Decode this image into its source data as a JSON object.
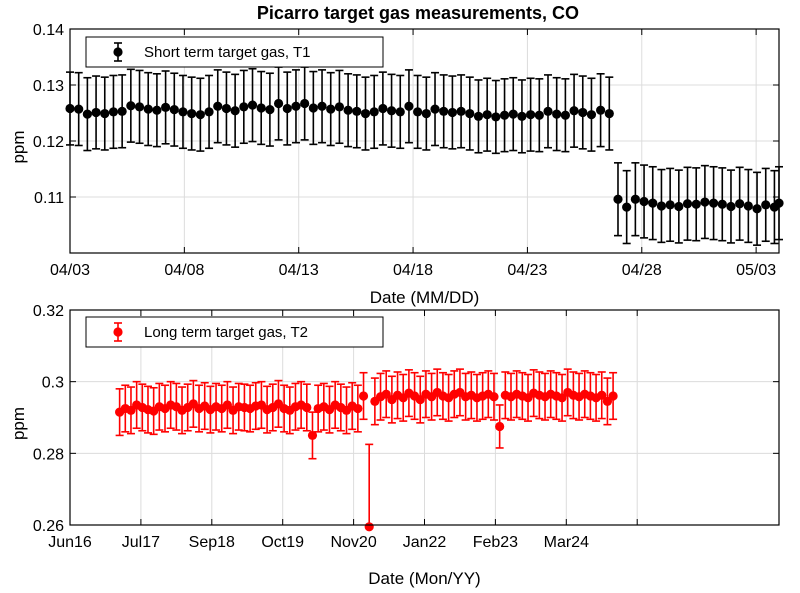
{
  "figure_title": "Picarro target gas measurements, CO",
  "chart_data": [
    {
      "type": "scatter",
      "xlabel": "Date (MM/DD)",
      "ylabel": "ppm",
      "x_unit": "days",
      "xlim": [
        0,
        31
      ],
      "ylim": [
        0.1,
        0.14
      ],
      "yticks": [
        0.11,
        0.12,
        0.13,
        0.14
      ],
      "ytick_labels": [
        "0.11",
        "0.12",
        "0.13",
        "0.14"
      ],
      "xticks": [
        0,
        5,
        10,
        15,
        20,
        25,
        30
      ],
      "xtick_labels": [
        "04/03",
        "04/08",
        "04/13",
        "04/18",
        "04/23",
        "04/28",
        "05/03"
      ],
      "grid": true,
      "legend_position": "top-left",
      "series": [
        {
          "name": "Short term target gas, T1",
          "color": "#000000",
          "errorbar": 0.0065,
          "x": [
            0.0,
            0.38,
            0.76,
            1.14,
            1.52,
            1.9,
            2.28,
            2.66,
            3.04,
            3.42,
            3.8,
            4.18,
            4.56,
            4.94,
            5.32,
            5.7,
            6.08,
            6.46,
            6.84,
            7.22,
            7.6,
            7.98,
            8.36,
            8.74,
            9.12,
            9.5,
            9.88,
            10.26,
            10.64,
            11.02,
            11.4,
            11.78,
            12.16,
            12.54,
            12.92,
            13.3,
            13.68,
            14.06,
            14.44,
            14.82,
            15.2,
            15.58,
            15.96,
            16.34,
            16.72,
            17.1,
            17.48,
            17.86,
            18.24,
            18.62,
            19.0,
            19.38,
            19.76,
            20.14,
            20.52,
            20.9,
            21.28,
            21.66,
            22.04,
            22.42,
            22.8,
            23.2,
            23.58,
            23.96,
            24.34,
            24.72,
            25.1,
            25.48,
            25.86,
            26.24,
            26.62,
            27.0,
            27.38,
            27.76,
            28.14,
            28.52,
            28.9,
            29.28,
            29.66,
            30.04,
            30.42,
            30.8,
            31.0
          ],
          "y": [
            0.1258,
            0.1257,
            0.1248,
            0.1251,
            0.1249,
            0.1252,
            0.1253,
            0.1263,
            0.1261,
            0.1257,
            0.1255,
            0.126,
            0.1256,
            0.1252,
            0.1249,
            0.1247,
            0.1252,
            0.1262,
            0.1258,
            0.1254,
            0.1261,
            0.1264,
            0.1259,
            0.1256,
            0.1267,
            0.1258,
            0.1262,
            0.1267,
            0.1259,
            0.1262,
            0.1257,
            0.1261,
            0.1255,
            0.1253,
            0.1249,
            0.1252,
            0.1258,
            0.1254,
            0.1252,
            0.1262,
            0.1252,
            0.1249,
            0.1257,
            0.1253,
            0.1251,
            0.1253,
            0.1249,
            0.1244,
            0.1247,
            0.1243,
            0.1246,
            0.1248,
            0.1244,
            0.1247,
            0.1246,
            0.1253,
            0.1248,
            0.1246,
            0.1254,
            0.1251,
            0.1247,
            0.1255,
            0.1249,
            0.1096,
            0.1082,
            0.1096,
            0.1092,
            0.1089,
            0.1084,
            0.1086,
            0.1083,
            0.1088,
            0.1087,
            0.1091,
            0.1089,
            0.1087,
            0.1083,
            0.1088,
            0.1084,
            0.1079,
            0.1086,
            0.1082,
            0.1089
          ]
        }
      ]
    },
    {
      "type": "scatter",
      "xlabel": "Date (Mon/YY)",
      "ylabel": "ppm",
      "x_unit": "months",
      "xlim": [
        0,
        10
      ],
      "ylim": [
        0.26,
        0.32
      ],
      "yticks": [
        0.26,
        0.28,
        0.3,
        0.32
      ],
      "ytick_labels": [
        "0.26",
        "0.28",
        "0.3",
        "0.32"
      ],
      "xticks": [
        0,
        1,
        2,
        3,
        4,
        5,
        6,
        7,
        8
      ],
      "xtick_labels": [
        "Jun16",
        "Jul17",
        "Sep18",
        "Oct19",
        "Nov20",
        "Jan22",
        "Feb23",
        "Mar24",
        ""
      ],
      "grid": true,
      "legend_position": "top-left",
      "series": [
        {
          "name": "Long term target gas, T2",
          "color": "#ff0000",
          "errorbar": 0.0065,
          "x": [
            0.7,
            0.78,
            0.86,
            0.94,
            1.02,
            1.1,
            1.18,
            1.26,
            1.34,
            1.42,
            1.5,
            1.58,
            1.66,
            1.74,
            1.82,
            1.9,
            1.98,
            2.06,
            2.14,
            2.22,
            2.3,
            2.38,
            2.46,
            2.54,
            2.62,
            2.7,
            2.78,
            2.86,
            2.94,
            3.02,
            3.1,
            3.18,
            3.26,
            3.34,
            3.42,
            3.5,
            3.58,
            3.66,
            3.74,
            3.82,
            3.9,
            3.98,
            4.06,
            4.14,
            4.22,
            4.3,
            4.38,
            4.46,
            4.54,
            4.62,
            4.7,
            4.78,
            4.86,
            4.94,
            5.02,
            5.1,
            5.18,
            5.26,
            5.34,
            5.42,
            5.5,
            5.58,
            5.66,
            5.74,
            5.82,
            5.9,
            5.98,
            6.06,
            6.14,
            6.22,
            6.3,
            6.38,
            6.46,
            6.54,
            6.62,
            6.7,
            6.78,
            6.86,
            6.94,
            7.02,
            7.1,
            7.18,
            7.26,
            7.34,
            7.42,
            7.5,
            7.58,
            7.66
          ],
          "y": [
            0.2915,
            0.2925,
            0.292,
            0.2935,
            0.2928,
            0.2922,
            0.2918,
            0.293,
            0.2925,
            0.2935,
            0.293,
            0.292,
            0.2928,
            0.2938,
            0.2925,
            0.2932,
            0.2922,
            0.293,
            0.2925,
            0.2935,
            0.292,
            0.293,
            0.2928,
            0.2925,
            0.2932,
            0.2935,
            0.2922,
            0.2928,
            0.2938,
            0.2925,
            0.292,
            0.293,
            0.2935,
            0.2928,
            0.285,
            0.2925,
            0.293,
            0.2922,
            0.2935,
            0.2928,
            0.292,
            0.2932,
            0.2925,
            0.296,
            0.2595,
            0.2945,
            0.2958,
            0.2965,
            0.295,
            0.2962,
            0.2955,
            0.2968,
            0.296,
            0.295,
            0.2965,
            0.2958,
            0.297,
            0.296,
            0.2955,
            0.2965,
            0.297,
            0.2958,
            0.2962,
            0.2955,
            0.296,
            0.2965,
            0.2958,
            0.2875,
            0.2962,
            0.2958,
            0.2965,
            0.296,
            0.2955,
            0.2968,
            0.2962,
            0.2958,
            0.2965,
            0.296,
            0.2955,
            0.297,
            0.2962,
            0.2958,
            0.2965,
            0.296,
            0.2955,
            0.2962,
            0.2945,
            0.296
          ],
          "yerr": [
            0.0065,
            0.0065,
            0.0065,
            0.0065,
            0.0065,
            0.0065,
            0.0065,
            0.0065,
            0.0065,
            0.0065,
            0.0065,
            0.0065,
            0.0065,
            0.0065,
            0.0065,
            0.0065,
            0.0065,
            0.0065,
            0.0065,
            0.0065,
            0.0065,
            0.0065,
            0.0065,
            0.0065,
            0.0065,
            0.0065,
            0.0065,
            0.0065,
            0.0065,
            0.0065,
            0.0065,
            0.0065,
            0.0065,
            0.0065,
            0.0065,
            0.0065,
            0.0065,
            0.0065,
            0.0065,
            0.0065,
            0.0065,
            0.0065,
            0.0065,
            0.0065,
            0.023,
            0.0065,
            0.0065,
            0.0065,
            0.0065,
            0.0065,
            0.0065,
            0.0065,
            0.0065,
            0.0065,
            0.0065,
            0.0065,
            0.0065,
            0.0065,
            0.0065,
            0.0065,
            0.0065,
            0.0065,
            0.0065,
            0.0065,
            0.0065,
            0.0065,
            0.0065,
            0.006,
            0.0065,
            0.0065,
            0.0065,
            0.0065,
            0.0065,
            0.0065,
            0.0065,
            0.0065,
            0.0065,
            0.0065,
            0.0065,
            0.0065,
            0.0065,
            0.0065,
            0.0065,
            0.0065,
            0.0065,
            0.0065,
            0.0065,
            0.0065
          ]
        }
      ]
    }
  ]
}
